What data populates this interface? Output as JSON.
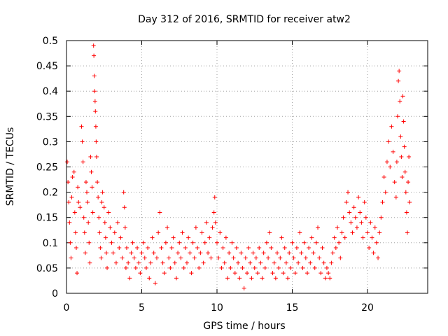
{
  "chart_data": {
    "type": "scatter",
    "title": "Day 312 of 2016, SRMTID for receiver atw2",
    "xlabel": "GPS time / hours",
    "ylabel": "SRMTID / TECUs",
    "xlim": [
      0,
      24
    ],
    "ylim": [
      0,
      0.5
    ],
    "xticks": [
      0,
      5,
      10,
      15,
      20
    ],
    "xtick_labels": [
      "0",
      "5",
      "10",
      "15",
      "20"
    ],
    "yticks": [
      0,
      0.05,
      0.1,
      0.15,
      0.2,
      0.25,
      0.3,
      0.35,
      0.4,
      0.45,
      0.5
    ],
    "ytick_labels": [
      "0",
      "0.05",
      "0.1",
      "0.15",
      "0.2",
      "0.25",
      "0.3",
      "0.35",
      "0.4",
      "0.45",
      "0.5"
    ],
    "grid": true,
    "marker": "plus",
    "color": "#ff0000",
    "series": [
      {
        "name": "SRMTID",
        "points": [
          [
            0.05,
            0.26
          ],
          [
            0.1,
            0.22
          ],
          [
            0.15,
            0.18
          ],
          [
            0.2,
            0.14
          ],
          [
            0.25,
            0.1
          ],
          [
            0.3,
            0.07
          ],
          [
            0.35,
            0.19
          ],
          [
            0.4,
            0.23
          ],
          [
            0.5,
            0.24
          ],
          [
            0.55,
            0.16
          ],
          [
            0.6,
            0.12
          ],
          [
            0.65,
            0.09
          ],
          [
            0.7,
            0.04
          ],
          [
            0.75,
            0.21
          ],
          [
            0.8,
            0.18
          ],
          [
            0.9,
            0.17
          ],
          [
            1.0,
            0.33
          ],
          [
            1.05,
            0.3
          ],
          [
            1.1,
            0.26
          ],
          [
            1.15,
            0.15
          ],
          [
            1.2,
            0.12
          ],
          [
            1.25,
            0.08
          ],
          [
            1.3,
            0.22
          ],
          [
            1.35,
            0.2
          ],
          [
            1.4,
            0.18
          ],
          [
            1.45,
            0.14
          ],
          [
            1.5,
            0.1
          ],
          [
            1.55,
            0.06
          ],
          [
            1.6,
            0.27
          ],
          [
            1.65,
            0.24
          ],
          [
            1.7,
            0.21
          ],
          [
            1.75,
            0.16
          ],
          [
            1.8,
            0.49
          ],
          [
            1.82,
            0.47
          ],
          [
            1.85,
            0.43
          ],
          [
            1.87,
            0.4
          ],
          [
            1.9,
            0.38
          ],
          [
            1.92,
            0.36
          ],
          [
            1.95,
            0.33
          ],
          [
            1.97,
            0.3
          ],
          [
            2.0,
            0.27
          ],
          [
            2.05,
            0.22
          ],
          [
            2.1,
            0.19
          ],
          [
            2.15,
            0.15
          ],
          [
            2.2,
            0.12
          ],
          [
            2.25,
            0.09
          ],
          [
            2.3,
            0.07
          ],
          [
            2.35,
            0.18
          ],
          [
            2.4,
            0.2
          ],
          [
            2.5,
            0.17
          ],
          [
            2.55,
            0.14
          ],
          [
            2.6,
            0.11
          ],
          [
            2.65,
            0.08
          ],
          [
            2.7,
            0.05
          ],
          [
            2.8,
            0.16
          ],
          [
            2.9,
            0.13
          ],
          [
            3.0,
            0.1
          ],
          [
            3.1,
            0.08
          ],
          [
            3.2,
            0.12
          ],
          [
            3.3,
            0.06
          ],
          [
            3.4,
            0.14
          ],
          [
            3.5,
            0.09
          ],
          [
            3.6,
            0.11
          ],
          [
            3.7,
            0.07
          ],
          [
            3.8,
            0.2
          ],
          [
            3.85,
            0.17
          ],
          [
            3.9,
            0.13
          ],
          [
            3.95,
            0.05
          ],
          [
            4.0,
            0.09
          ],
          [
            4.1,
            0.06
          ],
          [
            4.2,
            0.03
          ],
          [
            4.3,
            0.08
          ],
          [
            4.4,
            0.1
          ],
          [
            4.5,
            0.07
          ],
          [
            4.6,
            0.05
          ],
          [
            4.7,
            0.09
          ],
          [
            4.8,
            0.06
          ],
          [
            4.9,
            0.04
          ],
          [
            5.0,
            0.08
          ],
          [
            5.1,
            0.1
          ],
          [
            5.2,
            0.07
          ],
          [
            5.3,
            0.05
          ],
          [
            5.4,
            0.09
          ],
          [
            5.5,
            0.03
          ],
          [
            5.6,
            0.06
          ],
          [
            5.7,
            0.11
          ],
          [
            5.8,
            0.08
          ],
          [
            5.9,
            0.02
          ],
          [
            6.0,
            0.07
          ],
          [
            6.1,
            0.12
          ],
          [
            6.2,
            0.16
          ],
          [
            6.3,
            0.09
          ],
          [
            6.4,
            0.06
          ],
          [
            6.5,
            0.04
          ],
          [
            6.6,
            0.1
          ],
          [
            6.7,
            0.13
          ],
          [
            6.8,
            0.07
          ],
          [
            6.9,
            0.05
          ],
          [
            7.0,
            0.09
          ],
          [
            7.1,
            0.11
          ],
          [
            7.2,
            0.06
          ],
          [
            7.3,
            0.03
          ],
          [
            7.4,
            0.08
          ],
          [
            7.5,
            0.1
          ],
          [
            7.6,
            0.07
          ],
          [
            7.7,
            0.12
          ],
          [
            7.8,
            0.05
          ],
          [
            7.9,
            0.09
          ],
          [
            8.0,
            0.06
          ],
          [
            8.1,
            0.11
          ],
          [
            8.2,
            0.08
          ],
          [
            8.3,
            0.04
          ],
          [
            8.4,
            0.1
          ],
          [
            8.5,
            0.07
          ],
          [
            8.6,
            0.13
          ],
          [
            8.7,
            0.09
          ],
          [
            8.8,
            0.05
          ],
          [
            8.9,
            0.08
          ],
          [
            9.0,
            0.12
          ],
          [
            9.1,
            0.06
          ],
          [
            9.2,
            0.1
          ],
          [
            9.3,
            0.14
          ],
          [
            9.4,
            0.08
          ],
          [
            9.5,
            0.11
          ],
          [
            9.6,
            0.07
          ],
          [
            9.7,
            0.13
          ],
          [
            9.8,
            0.16
          ],
          [
            9.85,
            0.19
          ],
          [
            9.9,
            0.14
          ],
          [
            10.0,
            0.1
          ],
          [
            10.1,
            0.07
          ],
          [
            10.2,
            0.12
          ],
          [
            10.3,
            0.05
          ],
          [
            10.4,
            0.09
          ],
          [
            10.5,
            0.06
          ],
          [
            10.6,
            0.11
          ],
          [
            10.7,
            0.03
          ],
          [
            10.8,
            0.08
          ],
          [
            10.9,
            0.05
          ],
          [
            11.0,
            0.1
          ],
          [
            11.1,
            0.07
          ],
          [
            11.2,
            0.04
          ],
          [
            11.3,
            0.09
          ],
          [
            11.4,
            0.06
          ],
          [
            11.5,
            0.03
          ],
          [
            11.6,
            0.08
          ],
          [
            11.7,
            0.05
          ],
          [
            11.8,
            0.01
          ],
          [
            11.9,
            0.07
          ],
          [
            12.0,
            0.04
          ],
          [
            12.1,
            0.09
          ],
          [
            12.2,
            0.06
          ],
          [
            12.3,
            0.03
          ],
          [
            12.4,
            0.08
          ],
          [
            12.5,
            0.05
          ],
          [
            12.6,
            0.07
          ],
          [
            12.7,
            0.04
          ],
          [
            12.8,
            0.09
          ],
          [
            12.9,
            0.06
          ],
          [
            13.0,
            0.03
          ],
          [
            13.1,
            0.08
          ],
          [
            13.2,
            0.05
          ],
          [
            13.3,
            0.1
          ],
          [
            13.4,
            0.07
          ],
          [
            13.5,
            0.12
          ],
          [
            13.6,
            0.09
          ],
          [
            13.7,
            0.04
          ],
          [
            13.8,
            0.06
          ],
          [
            13.9,
            0.03
          ],
          [
            14.0,
            0.08
          ],
          [
            14.1,
            0.05
          ],
          [
            14.2,
            0.07
          ],
          [
            14.3,
            0.11
          ],
          [
            14.4,
            0.04
          ],
          [
            14.5,
            0.09
          ],
          [
            14.6,
            0.06
          ],
          [
            14.7,
            0.03
          ],
          [
            14.8,
            0.08
          ],
          [
            14.9,
            0.05
          ],
          [
            15.0,
            0.1
          ],
          [
            15.1,
            0.07
          ],
          [
            15.2,
            0.04
          ],
          [
            15.3,
            0.09
          ],
          [
            15.4,
            0.06
          ],
          [
            15.5,
            0.12
          ],
          [
            15.6,
            0.08
          ],
          [
            15.7,
            0.05
          ],
          [
            15.8,
            0.1
          ],
          [
            15.9,
            0.07
          ],
          [
            16.0,
            0.04
          ],
          [
            16.1,
            0.09
          ],
          [
            16.2,
            0.06
          ],
          [
            16.3,
            0.11
          ],
          [
            16.4,
            0.08
          ],
          [
            16.5,
            0.05
          ],
          [
            16.6,
            0.1
          ],
          [
            16.7,
            0.13
          ],
          [
            16.8,
            0.07
          ],
          [
            16.9,
            0.04
          ],
          [
            17.0,
            0.09
          ],
          [
            17.1,
            0.06
          ],
          [
            17.2,
            0.03
          ],
          [
            17.3,
            0.05
          ],
          [
            17.4,
            0.04
          ],
          [
            17.5,
            0.03
          ],
          [
            17.6,
            0.06
          ],
          [
            17.7,
            0.08
          ],
          [
            17.8,
            0.11
          ],
          [
            17.9,
            0.09
          ],
          [
            18.0,
            0.13
          ],
          [
            18.1,
            0.1
          ],
          [
            18.2,
            0.07
          ],
          [
            18.3,
            0.12
          ],
          [
            18.4,
            0.15
          ],
          [
            18.5,
            0.11
          ],
          [
            18.6,
            0.18
          ],
          [
            18.7,
            0.2
          ],
          [
            18.8,
            0.16
          ],
          [
            18.9,
            0.14
          ],
          [
            19.0,
            0.12
          ],
          [
            19.1,
            0.17
          ],
          [
            19.2,
            0.15
          ],
          [
            19.3,
            0.13
          ],
          [
            19.4,
            0.19
          ],
          [
            19.5,
            0.16
          ],
          [
            19.6,
            0.14
          ],
          [
            19.7,
            0.11
          ],
          [
            19.8,
            0.18
          ],
          [
            19.9,
            0.15
          ],
          [
            20.0,
            0.12
          ],
          [
            20.1,
            0.09
          ],
          [
            20.2,
            0.14
          ],
          [
            20.3,
            0.11
          ],
          [
            20.4,
            0.08
          ],
          [
            20.5,
            0.13
          ],
          [
            20.6,
            0.1
          ],
          [
            20.7,
            0.07
          ],
          [
            20.8,
            0.12
          ],
          [
            20.9,
            0.15
          ],
          [
            21.0,
            0.18
          ],
          [
            21.1,
            0.23
          ],
          [
            21.2,
            0.2
          ],
          [
            21.3,
            0.26
          ],
          [
            21.4,
            0.3
          ],
          [
            21.5,
            0.25
          ],
          [
            21.6,
            0.33
          ],
          [
            21.7,
            0.28
          ],
          [
            21.8,
            0.22
          ],
          [
            21.9,
            0.19
          ],
          [
            21.95,
            0.26
          ],
          [
            22.0,
            0.35
          ],
          [
            22.05,
            0.42
          ],
          [
            22.1,
            0.44
          ],
          [
            22.15,
            0.38
          ],
          [
            22.2,
            0.31
          ],
          [
            22.25,
            0.27
          ],
          [
            22.3,
            0.23
          ],
          [
            22.35,
            0.39
          ],
          [
            22.4,
            0.34
          ],
          [
            22.45,
            0.29
          ],
          [
            22.5,
            0.24
          ],
          [
            22.55,
            0.2
          ],
          [
            22.6,
            0.16
          ],
          [
            22.65,
            0.12
          ],
          [
            22.7,
            0.22
          ],
          [
            22.75,
            0.27
          ],
          [
            22.8,
            0.18
          ]
        ]
      }
    ]
  }
}
